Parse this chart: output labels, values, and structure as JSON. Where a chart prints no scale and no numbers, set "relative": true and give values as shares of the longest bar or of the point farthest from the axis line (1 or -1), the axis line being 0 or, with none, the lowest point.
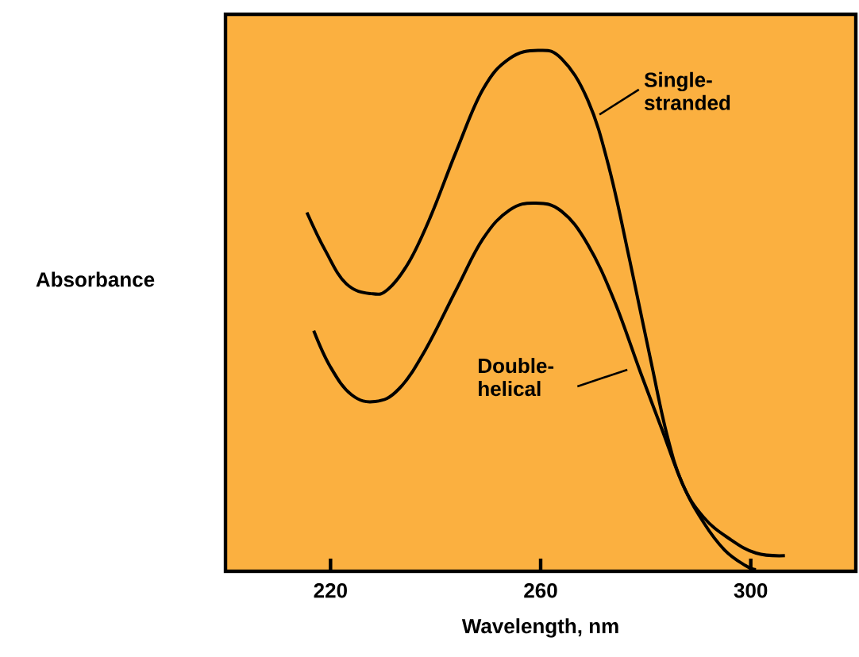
{
  "chart_data": {
    "type": "line",
    "xlabel": "Wavelength, nm",
    "ylabel": "Absorbance",
    "relative": true,
    "xlim": [
      200,
      320
    ],
    "xticks": [
      220,
      260,
      300
    ],
    "series": [
      {
        "name": "Single-stranded",
        "color": "#000000",
        "x": [
          215.5,
          219,
          223,
          227.8,
          231,
          235,
          239,
          244,
          249,
          254,
          259.5,
          264,
          269,
          273,
          277,
          281,
          284,
          287,
          291,
          296,
          301,
          306.5
        ],
        "values": [
          0.689,
          0.616,
          0.552,
          0.533,
          0.542,
          0.595,
          0.68,
          0.808,
          0.925,
          0.984,
          1.0,
          0.984,
          0.904,
          0.776,
          0.595,
          0.403,
          0.264,
          0.168,
          0.104,
          0.062,
          0.035,
          0.03
        ]
      },
      {
        "name": "Double-helical",
        "color": "#000000",
        "x": [
          216.8,
          220,
          224,
          228.5,
          233,
          238,
          244,
          249,
          254,
          259,
          264,
          269,
          274,
          279,
          283,
          287,
          291,
          295,
          299,
          301
        ],
        "values": [
          0.462,
          0.392,
          0.339,
          0.326,
          0.35,
          0.424,
          0.542,
          0.638,
          0.693,
          0.707,
          0.691,
          0.627,
          0.52,
          0.382,
          0.275,
          0.168,
          0.094,
          0.041,
          0.011,
          0.003
        ]
      }
    ],
    "marker": "none",
    "line_style": "solid",
    "grid": false
  }
}
